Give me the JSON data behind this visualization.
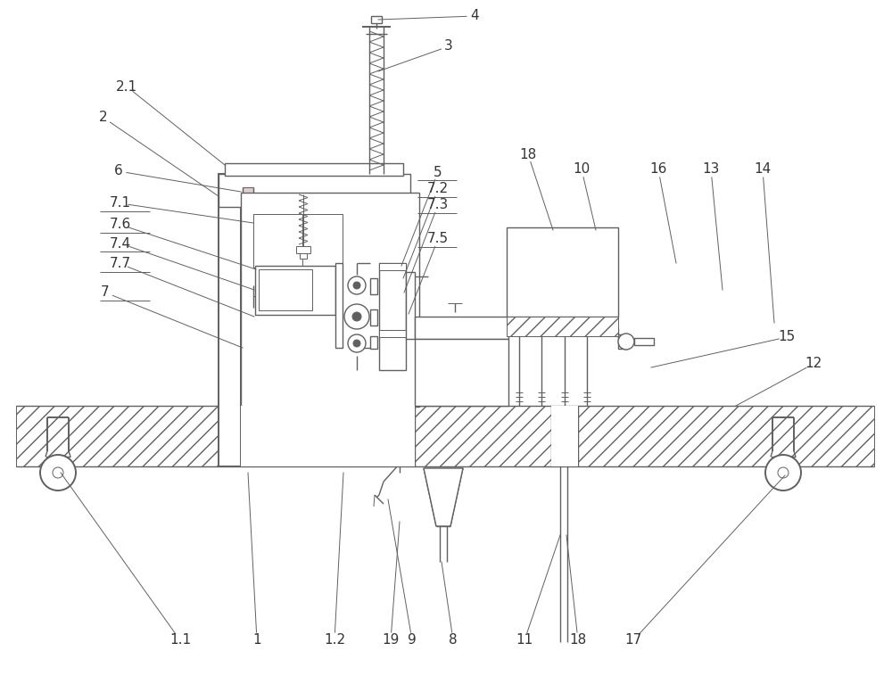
{
  "fig_width": 10.0,
  "fig_height": 7.58,
  "lc": "#606060",
  "bg": "#ffffff",
  "fs": 11,
  "lbl_c": "#333333"
}
